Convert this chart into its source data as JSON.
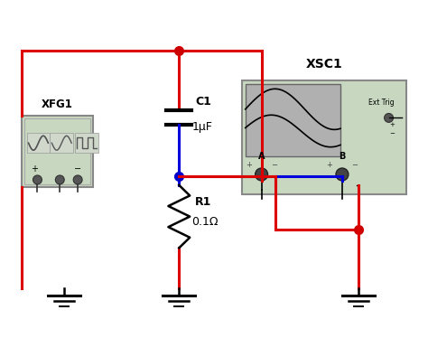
{
  "bg_color": "#ffffff",
  "title": "XSC1",
  "wire_color_red": "#dd0000",
  "wire_color_blue": "#0000dd",
  "dot_color_red": "#cc0000",
  "dot_color_blue": "#0000cc",
  "xfg1_label": "XFG1",
  "xfg1_box_color": "#c8d8c0",
  "xfg1_box_edge": "#888888",
  "xsc1_box_color": "#c8d8c0",
  "xsc1_box_edge": "#888888",
  "xsc1_screen_color": "#b0b0b0",
  "ext_trig_label": "Ext Trig",
  "c1_label": "C1",
  "c1_value": "1μF",
  "r1_label": "R1",
  "r1_value": "0.1Ω"
}
